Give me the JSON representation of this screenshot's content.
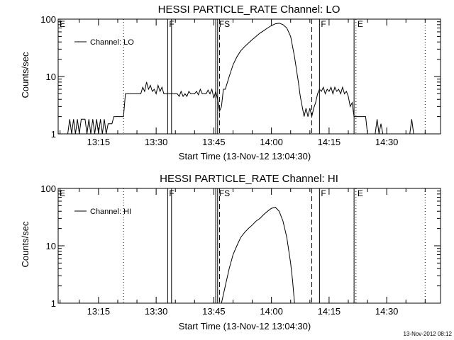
{
  "chart_data": [
    {
      "type": "line",
      "title": "HESSI PARTICLE_RATE Channel: LO",
      "xlabel": "Start Time (13-Nov-12 13:04:30)",
      "ylabel": "Counts/sec",
      "yscale": "log",
      "ylim": [
        1,
        100
      ],
      "xlim": [
        "13:04:30",
        "14:44:00"
      ],
      "x_ticks": [
        "13:15",
        "13:30",
        "13:45",
        "14:00",
        "14:15",
        "14:30"
      ],
      "y_ticks": [
        "1",
        "10",
        "100"
      ],
      "legend": {
        "entries": [
          "Channel: LO"
        ],
        "placement": "top-left"
      },
      "grid": false,
      "markers": [
        {
          "label": "E",
          "time": "13:04:30",
          "style": "dotted"
        },
        {
          "label": "",
          "time": "13:21:30",
          "style": "dotted"
        },
        {
          "label": "F",
          "time": "13:33:00",
          "style": "solid"
        },
        {
          "label": "",
          "time": "13:34:00",
          "style": "solid"
        },
        {
          "label": "",
          "time": "13:45:30",
          "style": "solid"
        },
        {
          "label": "FS",
          "time": "13:46:00",
          "style": "solid"
        },
        {
          "label": "",
          "time": "13:46:30",
          "style": "dashed"
        },
        {
          "label": "",
          "time": "14:10:30",
          "style": "dashed"
        },
        {
          "label": "F",
          "time": "14:12:30",
          "style": "solid"
        },
        {
          "label": "",
          "time": "14:21:30",
          "style": "solid"
        },
        {
          "label": "E",
          "time": "14:22:00",
          "style": "dotted"
        },
        {
          "label": "",
          "time": "14:40:00",
          "style": "dotted"
        }
      ],
      "series": [
        {
          "name": "Channel: LO",
          "segments": [
            [
              [
                "13:07:00",
                1.0
              ],
              [
                "13:07:30",
                1.8
              ],
              [
                "13:08:00",
                1.0
              ],
              [
                "13:08:30",
                1.8
              ],
              [
                "13:09:00",
                1.0
              ],
              [
                "13:09:30",
                1.8
              ],
              [
                "13:10:00",
                1.0
              ],
              [
                "13:10:30",
                1.8
              ],
              [
                "13:11:30",
                1.8
              ],
              [
                "13:12:00",
                1.0
              ],
              [
                "13:12:30",
                1.8
              ],
              [
                "13:13:00",
                1.0
              ],
              [
                "13:13:30",
                1.8
              ],
              [
                "13:14:00",
                1.0
              ],
              [
                "13:14:30",
                1.8
              ],
              [
                "13:15:00",
                1.0
              ],
              [
                "13:15:30",
                1.8
              ],
              [
                "13:16:00",
                1.0
              ],
              [
                "13:16:30",
                1.8
              ],
              [
                "13:17:00",
                1.0
              ],
              [
                "13:17:30",
                1.5
              ],
              [
                "13:18:30",
                1.5
              ],
              [
                "13:19:00",
                2.0
              ],
              [
                "13:21:00",
                2.0
              ],
              [
                "13:21:30",
                2.0
              ],
              [
                "13:22:00",
                5.0
              ],
              [
                "13:26:00",
                5.0
              ],
              [
                "13:26:30",
                6.5
              ],
              [
                "13:27:00",
                5.5
              ],
              [
                "13:27:30",
                8.0
              ],
              [
                "13:28:00",
                6.0
              ],
              [
                "13:28:30",
                7.0
              ],
              [
                "13:29:00",
                5.5
              ],
              [
                "13:29:30",
                6.0
              ],
              [
                "13:30:00",
                5.0
              ],
              [
                "13:30:30",
                7.0
              ],
              [
                "13:31:00",
                5.5
              ],
              [
                "13:31:30",
                6.5
              ],
              [
                "13:32:00",
                5.0
              ],
              [
                "13:33:00",
                5.0
              ],
              [
                "13:35:30",
                5.0
              ],
              [
                "13:36:00",
                4.5
              ],
              [
                "13:36:30",
                5.5
              ],
              [
                "13:37:00",
                4.5
              ],
              [
                "13:37:30",
                5.0
              ],
              [
                "13:38:00",
                4.5
              ],
              [
                "13:38:30",
                5.5
              ],
              [
                "13:39:00",
                5.0
              ],
              [
                "13:40:00",
                5.0
              ],
              [
                "13:40:30",
                5.5
              ],
              [
                "13:41:00",
                4.8
              ],
              [
                "13:41:30",
                6.0
              ],
              [
                "13:42:00",
                5.0
              ],
              [
                "13:43:00",
                5.0
              ],
              [
                "13:43:30",
                5.8
              ],
              [
                "13:44:00",
                5.0
              ],
              [
                "13:44:30",
                6.0
              ],
              [
                "13:45:00",
                4.2
              ],
              [
                "13:45:30",
                5.5
              ],
              [
                "13:46:00",
                4.0
              ],
              [
                "13:46:30",
                2.5
              ],
              [
                "13:47:00",
                3.0
              ],
              [
                "13:47:30",
                6.0
              ],
              [
                "13:48:00",
                6.0
              ],
              [
                "13:49:00",
                10.0
              ],
              [
                "13:50:00",
                16.0
              ],
              [
                "13:51:00",
                22.0
              ],
              [
                "13:52:00",
                28.0
              ],
              [
                "13:53:00",
                33.0
              ],
              [
                "13:54:00",
                38.0
              ],
              [
                "13:55:00",
                44.0
              ],
              [
                "13:56:00",
                50.0
              ],
              [
                "13:57:00",
                57.0
              ],
              [
                "13:58:00",
                63.0
              ],
              [
                "13:59:00",
                70.0
              ],
              [
                "14:00:00",
                77.0
              ],
              [
                "14:01:00",
                83.0
              ],
              [
                "14:02:00",
                85.0
              ],
              [
                "14:03:00",
                80.0
              ],
              [
                "14:04:00",
                70.0
              ],
              [
                "14:05:00",
                50.0
              ],
              [
                "14:06:00",
                22.0
              ],
              [
                "14:07:00",
                8.0
              ],
              [
                "14:07:30",
                4.5
              ],
              [
                "14:08:00",
                3.0
              ],
              [
                "14:08:30",
                2.0
              ],
              [
                "14:09:00",
                2.8
              ],
              [
                "14:09:30",
                2.0
              ],
              [
                "14:10:00",
                2.8
              ],
              [
                "14:10:30",
                2.0
              ],
              [
                "14:11:00",
                2.8
              ],
              [
                "14:11:30",
                3.5
              ],
              [
                "14:12:00",
                5.0
              ],
              [
                "14:12:30",
                6.0
              ],
              [
                "14:13:00",
                5.5
              ],
              [
                "14:13:30",
                6.5
              ],
              [
                "14:14:00",
                5.0
              ],
              [
                "14:14:30",
                6.0
              ],
              [
                "14:15:00",
                5.5
              ],
              [
                "14:15:30",
                6.5
              ],
              [
                "14:16:00",
                5.0
              ],
              [
                "14:16:30",
                6.5
              ],
              [
                "14:17:00",
                5.5
              ],
              [
                "14:17:30",
                6.0
              ],
              [
                "14:18:00",
                5.0
              ],
              [
                "14:18:30",
                6.5
              ],
              [
                "14:19:00",
                5.0
              ],
              [
                "14:19:30",
                5.5
              ],
              [
                "14:20:00",
                4.5
              ],
              [
                "14:20:30",
                3.0
              ],
              [
                "14:21:00",
                3.5
              ],
              [
                "14:21:30",
                2.0
              ],
              [
                "14:22:30",
                2.0
              ],
              [
                "14:23:30",
                2.0
              ],
              [
                "14:24:30",
                2.0
              ],
              [
                "14:25:00",
                1.0
              ]
            ],
            [
              [
                "14:27:00",
                1.0
              ],
              [
                "14:27:30",
                1.8
              ],
              [
                "14:28:00",
                1.0
              ],
              [
                "14:28:30",
                1.5
              ],
              [
                "14:29:00",
                1.0
              ]
            ],
            [
              [
                "14:36:00",
                1.0
              ],
              [
                "14:36:30",
                1.8
              ],
              [
                "14:37:00",
                1.0
              ]
            ]
          ]
        }
      ]
    },
    {
      "type": "line",
      "title": "HESSI PARTICLE_RATE Channel: HI",
      "xlabel": "Start Time (13-Nov-12 13:04:30)",
      "ylabel": "Counts/sec",
      "yscale": "log",
      "ylim": [
        1,
        100
      ],
      "xlim": [
        "13:04:30",
        "14:44:00"
      ],
      "x_ticks": [
        "13:15",
        "13:30",
        "13:45",
        "14:00",
        "14:15",
        "14:30"
      ],
      "y_ticks": [
        "1",
        "10",
        "100"
      ],
      "legend": {
        "entries": [
          "Channel: HI"
        ],
        "placement": "top-left"
      },
      "grid": false,
      "markers": [
        {
          "label": "E",
          "time": "13:04:30",
          "style": "dotted"
        },
        {
          "label": "",
          "time": "13:21:30",
          "style": "dotted"
        },
        {
          "label": "F",
          "time": "13:33:00",
          "style": "solid"
        },
        {
          "label": "",
          "time": "13:34:00",
          "style": "solid"
        },
        {
          "label": "",
          "time": "13:45:30",
          "style": "solid"
        },
        {
          "label": "FS",
          "time": "13:46:00",
          "style": "solid"
        },
        {
          "label": "",
          "time": "13:46:30",
          "style": "dashed"
        },
        {
          "label": "",
          "time": "14:10:30",
          "style": "dashed"
        },
        {
          "label": "F",
          "time": "14:12:30",
          "style": "solid"
        },
        {
          "label": "",
          "time": "14:21:30",
          "style": "solid"
        },
        {
          "label": "E",
          "time": "14:22:00",
          "style": "dotted"
        },
        {
          "label": "",
          "time": "14:40:00",
          "style": "dotted"
        }
      ],
      "series": [
        {
          "name": "Channel: HI",
          "segments": [
            [
              [
                "13:47:00",
                1.0
              ],
              [
                "13:48:00",
                2.0
              ],
              [
                "13:49:00",
                4.0
              ],
              [
                "13:50:00",
                7.0
              ],
              [
                "13:51:00",
                10.0
              ],
              [
                "13:52:00",
                14.0
              ],
              [
                "13:53:00",
                17.0
              ],
              [
                "13:54:00",
                20.0
              ],
              [
                "13:55:00",
                23.0
              ],
              [
                "13:56:00",
                27.0
              ],
              [
                "13:57:00",
                30.0
              ],
              [
                "13:58:00",
                35.0
              ],
              [
                "13:59:00",
                40.0
              ],
              [
                "14:00:00",
                45.0
              ],
              [
                "14:01:00",
                47.0
              ],
              [
                "14:02:00",
                40.0
              ],
              [
                "14:03:00",
                27.0
              ],
              [
                "14:04:00",
                14.0
              ],
              [
                "14:05:00",
                5.0
              ],
              [
                "14:05:30",
                2.5
              ],
              [
                "14:06:00",
                1.0
              ]
            ]
          ]
        }
      ]
    }
  ],
  "footer": {
    "timestamp": "13-Nov-2012 08:12"
  },
  "colors": {
    "background": "#ffffff",
    "foreground": "#000000"
  }
}
